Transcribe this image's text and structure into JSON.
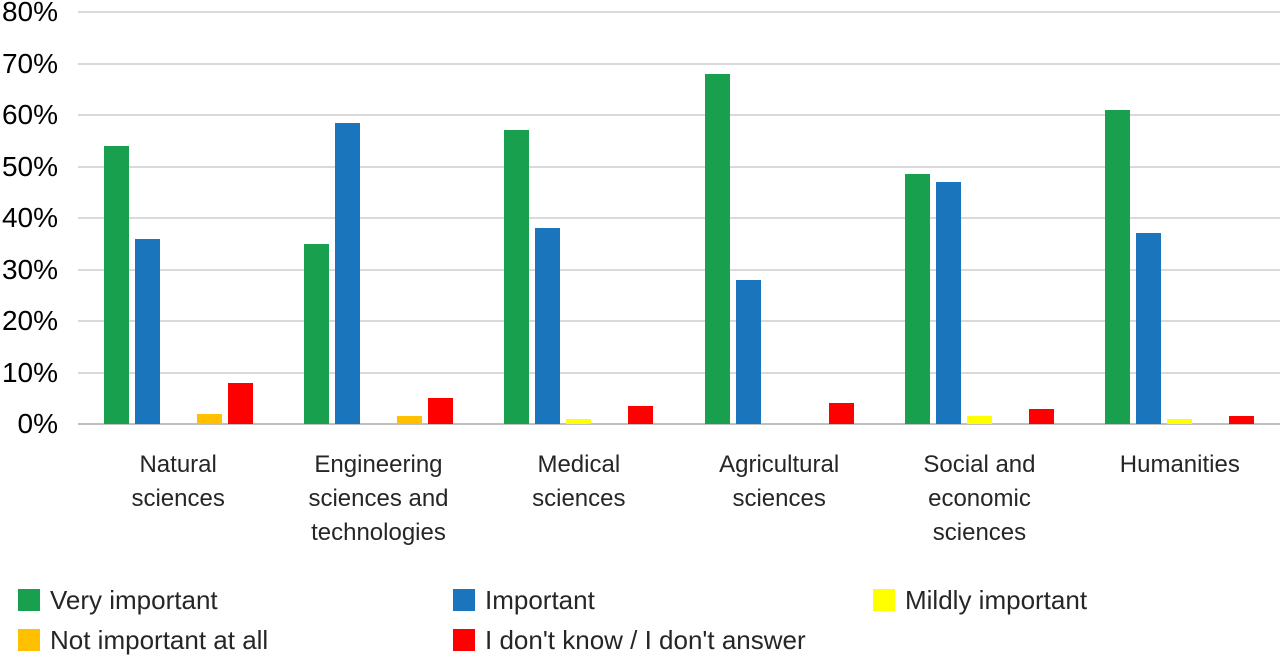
{
  "chart_data": {
    "type": "bar",
    "title": "",
    "categories": [
      "Natural sciences",
      "Engineering sciences and technologies",
      "Medical sciences",
      "Agricultural sciences",
      "Social and economic sciences",
      "Humanities"
    ],
    "series": [
      {
        "name": "Very important",
        "color": "#19a04f",
        "values": [
          54,
          35,
          57,
          68,
          48.5,
          61
        ]
      },
      {
        "name": "Important",
        "color": "#1b75bc",
        "values": [
          36,
          58.5,
          38,
          28,
          47,
          37
        ]
      },
      {
        "name": "Mildly important",
        "color": "#ffff00",
        "values": [
          0,
          0,
          1,
          0,
          1.5,
          1
        ]
      },
      {
        "name": "Not important at all",
        "color": "#ffc000",
        "values": [
          2,
          1.5,
          0,
          0,
          0,
          0
        ]
      },
      {
        "name": "I don't know / I don't answer",
        "color": "#ff0000",
        "values": [
          8,
          5,
          3.5,
          4,
          3,
          1.5
        ]
      }
    ],
    "xlabel": "",
    "ylabel": "",
    "ylim": [
      0,
      80
    ],
    "ytick_step": 10,
    "ytick_suffix": "%",
    "grid": true,
    "legend_position": "bottom",
    "colors": {
      "gridline": "#d9d9d9",
      "axis_line": "#bfbfbf",
      "background": "#ffffff"
    }
  }
}
